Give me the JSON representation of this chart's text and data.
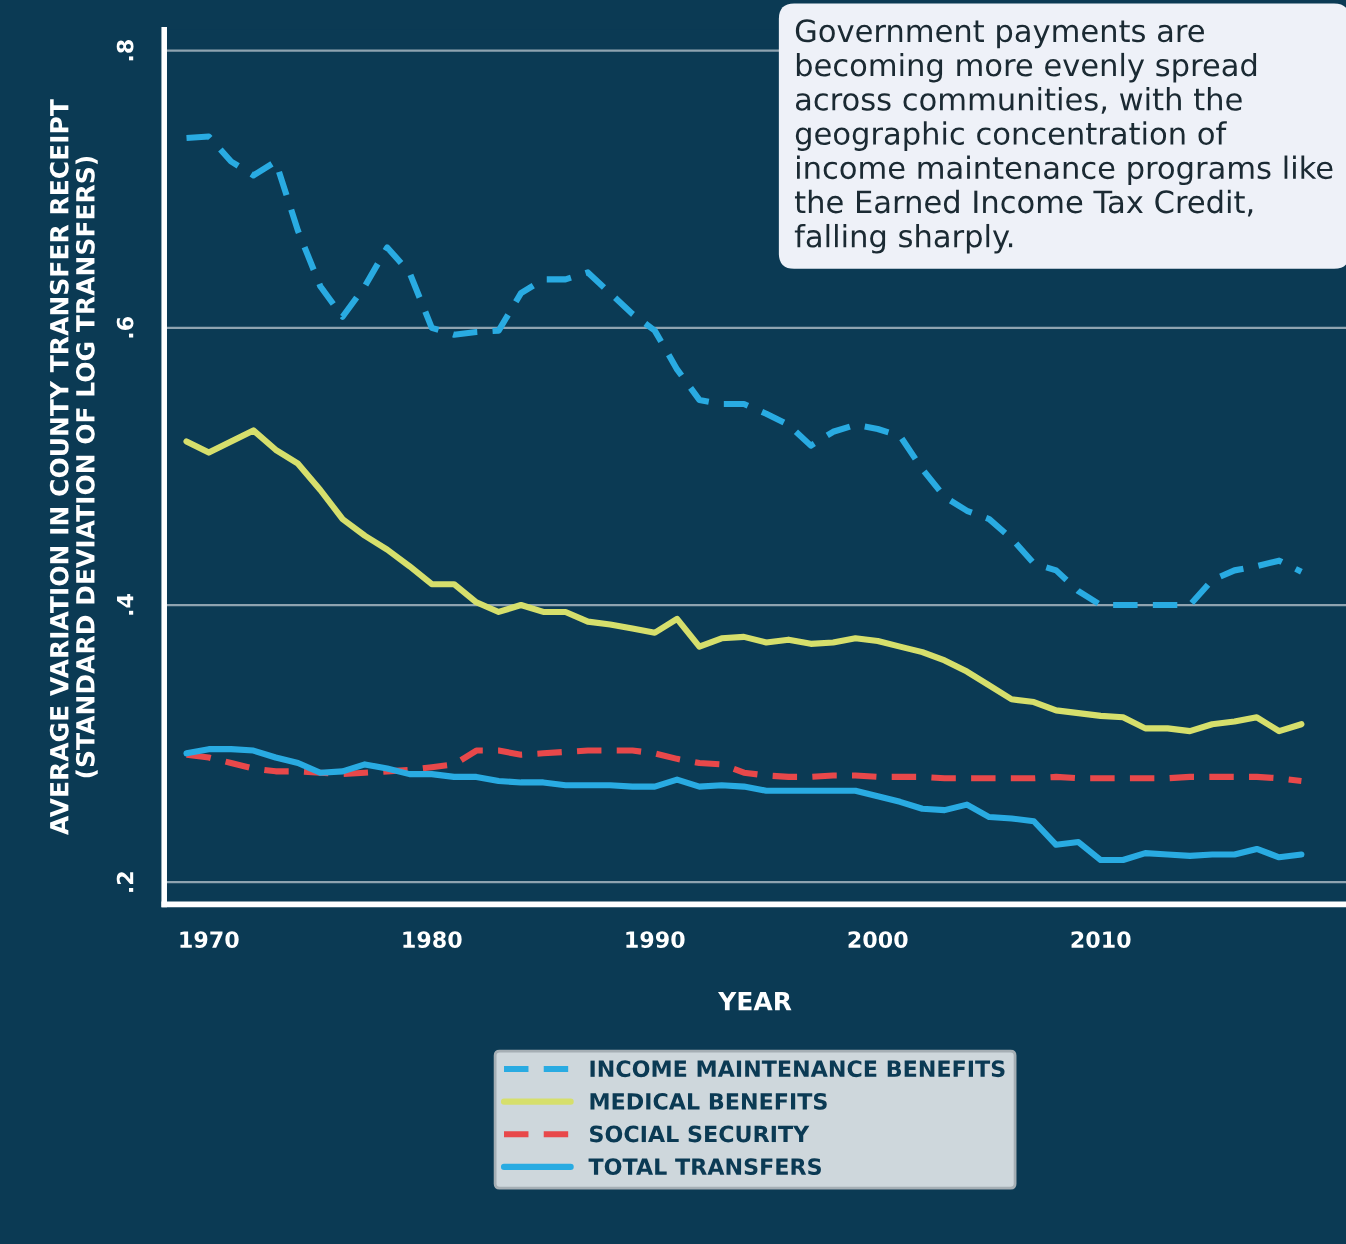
{
  "chart_data": {
    "type": "line",
    "xlabel": "YEAR",
    "ylabel": "AVERAGE VARIATION IN COUNTY TRANSFER RECEIPT\n(STANDARD DEVIATION OF LOG TRANSFERS)",
    "x": [
      1969,
      1970,
      1971,
      1972,
      1973,
      1974,
      1975,
      1976,
      1977,
      1978,
      1979,
      1980,
      1981,
      1982,
      1983,
      1984,
      1985,
      1986,
      1987,
      1988,
      1989,
      1990,
      1991,
      1992,
      1993,
      1994,
      1995,
      1996,
      1997,
      1998,
      1999,
      2000,
      2001,
      2002,
      2003,
      2004,
      2005,
      2006,
      2007,
      2008,
      2009,
      2010,
      2011,
      2012,
      2013,
      2014,
      2015,
      2016,
      2017,
      2018,
      2019
    ],
    "series": [
      {
        "name": "INCOME MAINTENANCE BENEFITS",
        "color": "#29abe2",
        "line_style": "dashed",
        "values": [
          0.737,
          0.738,
          0.72,
          0.71,
          0.72,
          0.67,
          0.63,
          0.608,
          0.63,
          0.658,
          0.64,
          0.6,
          0.595,
          0.597,
          0.598,
          0.625,
          0.635,
          0.635,
          0.64,
          0.625,
          0.61,
          0.598,
          0.57,
          0.548,
          0.545,
          0.545,
          0.538,
          0.53,
          0.515,
          0.525,
          0.53,
          0.527,
          0.522,
          0.498,
          0.478,
          0.468,
          0.462,
          0.448,
          0.43,
          0.425,
          0.41,
          0.4,
          0.4,
          0.4,
          0.4,
          0.4,
          0.418,
          0.425,
          0.428,
          0.432,
          0.424
        ]
      },
      {
        "name": "MEDICAL BENEFITS",
        "color": "#d6df6c",
        "line_style": "solid",
        "values": [
          0.518,
          0.51,
          0.518,
          0.526,
          0.512,
          0.502,
          0.483,
          0.462,
          0.45,
          0.44,
          0.428,
          0.415,
          0.415,
          0.402,
          0.395,
          0.4,
          0.395,
          0.395,
          0.388,
          0.386,
          0.383,
          0.38,
          0.39,
          0.37,
          0.376,
          0.377,
          0.373,
          0.375,
          0.372,
          0.373,
          0.376,
          0.374,
          0.37,
          0.366,
          0.36,
          0.352,
          0.342,
          0.332,
          0.33,
          0.324,
          0.322,
          0.32,
          0.319,
          0.311,
          0.311,
          0.309,
          0.314,
          0.316,
          0.319,
          0.309,
          0.314
        ]
      },
      {
        "name": "SOCIAL SECURITY",
        "color": "#e8484a",
        "line_style": "dashed",
        "values": [
          0.292,
          0.29,
          0.286,
          0.282,
          0.28,
          0.28,
          0.279,
          0.278,
          0.279,
          0.28,
          0.281,
          0.283,
          0.285,
          0.295,
          0.295,
          0.292,
          0.293,
          0.294,
          0.295,
          0.295,
          0.295,
          0.293,
          0.289,
          0.286,
          0.285,
          0.279,
          0.277,
          0.276,
          0.276,
          0.277,
          0.277,
          0.276,
          0.276,
          0.276,
          0.275,
          0.275,
          0.275,
          0.275,
          0.275,
          0.276,
          0.275,
          0.275,
          0.275,
          0.275,
          0.275,
          0.276,
          0.276,
          0.276,
          0.276,
          0.275,
          0.273
        ]
      },
      {
        "name": "TOTAL TRANSFERS",
        "color": "#29abe2",
        "line_style": "solid",
        "values": [
          0.293,
          0.296,
          0.296,
          0.295,
          0.29,
          0.286,
          0.279,
          0.28,
          0.285,
          0.282,
          0.278,
          0.278,
          0.276,
          0.276,
          0.273,
          0.272,
          0.272,
          0.27,
          0.27,
          0.27,
          0.269,
          0.269,
          0.274,
          0.269,
          0.27,
          0.269,
          0.266,
          0.266,
          0.266,
          0.266,
          0.266,
          0.262,
          0.258,
          0.253,
          0.252,
          0.256,
          0.247,
          0.246,
          0.244,
          0.227,
          0.229,
          0.216,
          0.216,
          0.221,
          0.22,
          0.219,
          0.22,
          0.22,
          0.224,
          0.218,
          0.22
        ]
      }
    ],
    "xlim": [
      1968,
      2021
    ],
    "ylim": [
      0.184,
      0.815
    ],
    "xticks": [
      1970,
      1980,
      1990,
      2000,
      2010
    ],
    "yticks": [
      {
        "value": 0.2,
        "label": ".2"
      },
      {
        "value": 0.4,
        "label": ".4"
      },
      {
        "value": 0.6,
        "label": ".6"
      },
      {
        "value": 0.8,
        "label": ".8"
      }
    ],
    "grid": "y",
    "legend": "bottom",
    "annotations": [
      "Government payments are becoming more evenly spread across communities, with the geographic concentration of income maintenance programs like the Earned Income Tax Credit, falling sharply."
    ]
  }
}
